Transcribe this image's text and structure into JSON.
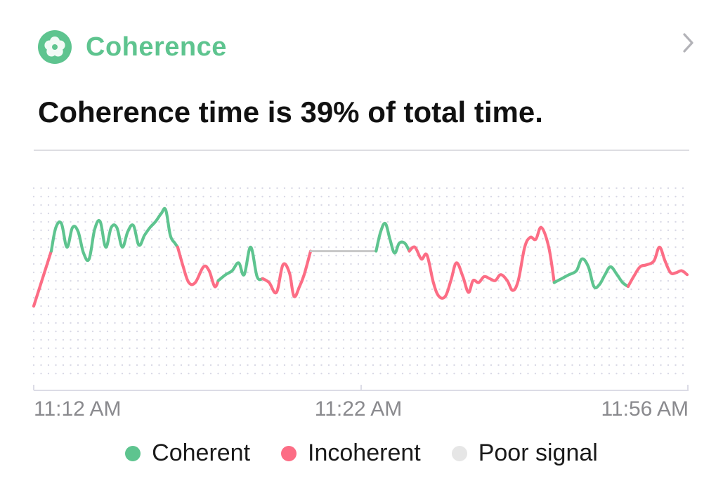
{
  "header": {
    "title": "Coherence",
    "icon": "flower-icon",
    "nav_icon": "chevron-right-icon"
  },
  "summary_text": "Coherence time is 39% of total time.",
  "colors": {
    "coherent": "#5ec48f",
    "incoherent": "#fc6d85",
    "poor_signal": "#c8c8c8",
    "poor_signal_legend": "#e6e6e6",
    "title": "#5ec48f",
    "grid_dots": "#d9d9e6",
    "axis": "#dcdce6",
    "tick_label": "#8a8a8e"
  },
  "chart_data": {
    "type": "line",
    "title": "",
    "xlabel": "",
    "ylabel": "",
    "x_tick_labels": [
      "11:12 AM",
      "11:22 AM",
      "11:56 AM"
    ],
    "ylim": [
      0,
      100
    ],
    "grid": true,
    "legend_position": "bottom",
    "series": [
      {
        "name": "Incoherent",
        "status": "incoherent",
        "points": [
          [
            0,
            40
          ],
          [
            1.9,
            68
          ]
        ]
      },
      {
        "name": "Coherent",
        "status": "coherent",
        "points": [
          [
            1.9,
            68
          ],
          [
            2.4,
            80
          ],
          [
            3.0,
            82
          ],
          [
            3.6,
            70
          ],
          [
            4.2,
            80
          ],
          [
            4.8,
            78
          ],
          [
            5.4,
            67
          ],
          [
            6.0,
            64
          ],
          [
            6.6,
            79
          ],
          [
            7.2,
            83
          ],
          [
            7.8,
            70
          ],
          [
            8.4,
            80
          ],
          [
            9.0,
            80
          ],
          [
            9.6,
            70
          ],
          [
            10.2,
            78
          ],
          [
            10.8,
            81
          ],
          [
            11.4,
            71
          ],
          [
            12.0,
            76
          ],
          [
            12.6,
            80
          ],
          [
            13.2,
            83
          ],
          [
            13.8,
            87
          ],
          [
            14.3,
            89
          ],
          [
            14.8,
            76
          ],
          [
            15.3,
            72
          ],
          [
            15.6,
            70
          ]
        ]
      },
      {
        "name": "Incoherent",
        "status": "incoherent",
        "points": [
          [
            15.6,
            70
          ],
          [
            16.2,
            60
          ],
          [
            16.8,
            52
          ],
          [
            17.5,
            52
          ],
          [
            18.4,
            60
          ],
          [
            19.0,
            58
          ],
          [
            19.6,
            50
          ],
          [
            20.0,
            53
          ]
        ]
      },
      {
        "name": "Coherent",
        "status": "coherent",
        "points": [
          [
            20.0,
            53
          ],
          [
            20.8,
            56
          ],
          [
            21.5,
            58
          ],
          [
            22.2,
            62
          ],
          [
            22.8,
            56
          ],
          [
            23.5,
            70
          ],
          [
            24.2,
            55
          ],
          [
            24.8,
            54
          ]
        ]
      },
      {
        "name": "Incoherent",
        "status": "incoherent",
        "points": [
          [
            24.8,
            54
          ],
          [
            25.5,
            52
          ],
          [
            26.3,
            47
          ],
          [
            27.0,
            61
          ],
          [
            27.7,
            57
          ],
          [
            28.2,
            45
          ],
          [
            28.8,
            50
          ],
          [
            29.3,
            56
          ],
          [
            30.0,
            68
          ]
        ]
      },
      {
        "name": "Poor signal",
        "status": "poor_signal",
        "points": [
          [
            30.0,
            68
          ],
          [
            37.1,
            68
          ]
        ]
      },
      {
        "name": "Coherent",
        "status": "coherent",
        "points": [
          [
            37.1,
            68
          ],
          [
            37.6,
            78
          ],
          [
            38.1,
            82
          ],
          [
            38.6,
            74
          ],
          [
            39.1,
            67
          ],
          [
            39.6,
            72
          ],
          [
            40.2,
            72
          ],
          [
            40.7,
            68
          ]
        ]
      },
      {
        "name": "Incoherent",
        "status": "incoherent",
        "points": [
          [
            40.7,
            68
          ],
          [
            41.3,
            70
          ],
          [
            42.0,
            64
          ],
          [
            42.6,
            66
          ],
          [
            43.3,
            52
          ],
          [
            43.9,
            45
          ],
          [
            44.6,
            45
          ],
          [
            45.2,
            53
          ],
          [
            45.8,
            62
          ],
          [
            46.5,
            55
          ],
          [
            47.1,
            47
          ],
          [
            47.6,
            53
          ],
          [
            48.2,
            52
          ],
          [
            48.8,
            55
          ],
          [
            49.4,
            54
          ],
          [
            50.0,
            53
          ],
          [
            50.6,
            56
          ],
          [
            51.3,
            53
          ],
          [
            51.9,
            48
          ],
          [
            52.5,
            53
          ],
          [
            53.2,
            70
          ],
          [
            53.8,
            75
          ],
          [
            54.4,
            74
          ],
          [
            55.0,
            80
          ],
          [
            55.8,
            70
          ],
          [
            56.4,
            52
          ]
        ]
      },
      {
        "name": "Coherent",
        "status": "coherent",
        "points": [
          [
            56.4,
            52
          ],
          [
            57.2,
            54
          ],
          [
            58.0,
            56
          ],
          [
            58.8,
            58
          ],
          [
            59.4,
            64
          ],
          [
            60.1,
            60
          ],
          [
            60.7,
            50
          ],
          [
            61.3,
            51
          ],
          [
            61.9,
            56
          ],
          [
            62.5,
            60
          ],
          [
            63.2,
            56
          ],
          [
            63.8,
            52
          ],
          [
            64.4,
            50
          ]
        ]
      },
      {
        "name": "Incoherent",
        "status": "incoherent",
        "points": [
          [
            64.4,
            50
          ],
          [
            65.0,
            55
          ],
          [
            65.7,
            60
          ],
          [
            66.4,
            61
          ],
          [
            67.2,
            63
          ],
          [
            67.8,
            70
          ],
          [
            68.4,
            63
          ],
          [
            69.0,
            57
          ],
          [
            69.6,
            57
          ],
          [
            70.2,
            58
          ],
          [
            70.8,
            56
          ]
        ]
      }
    ],
    "x_range": [
      0,
      70.8
    ]
  },
  "legend": [
    {
      "label": "Coherent",
      "status": "coherent"
    },
    {
      "label": "Incoherent",
      "status": "incoherent"
    },
    {
      "label": "Poor signal",
      "status": "poor_signal"
    }
  ]
}
